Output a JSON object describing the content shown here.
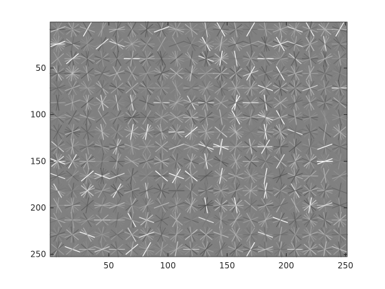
{
  "chart_data": {
    "type": "image",
    "xlim": [
      0.5,
      251.5
    ],
    "ylim": [
      0.5,
      252.5
    ],
    "y_direction": "reverse",
    "xticks": [
      50,
      100,
      150,
      200,
      250
    ],
    "yticks": [
      50,
      100,
      150,
      200,
      250
    ]
  }
}
